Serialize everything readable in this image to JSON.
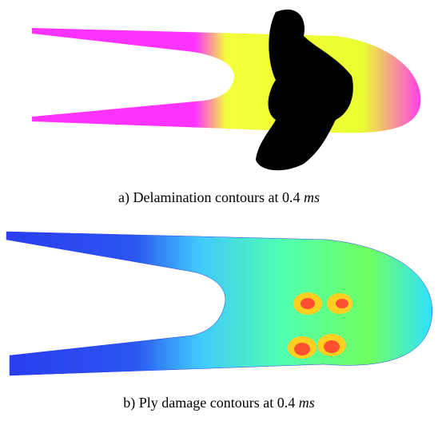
{
  "figures": [
    {
      "caption": {
        "prefix": "a) Delamination contours at 0.4 ",
        "unit": "ms"
      }
    },
    {
      "caption": {
        "prefix": "b) Ply damage contours at 0.4 ",
        "unit": "ms"
      }
    }
  ]
}
